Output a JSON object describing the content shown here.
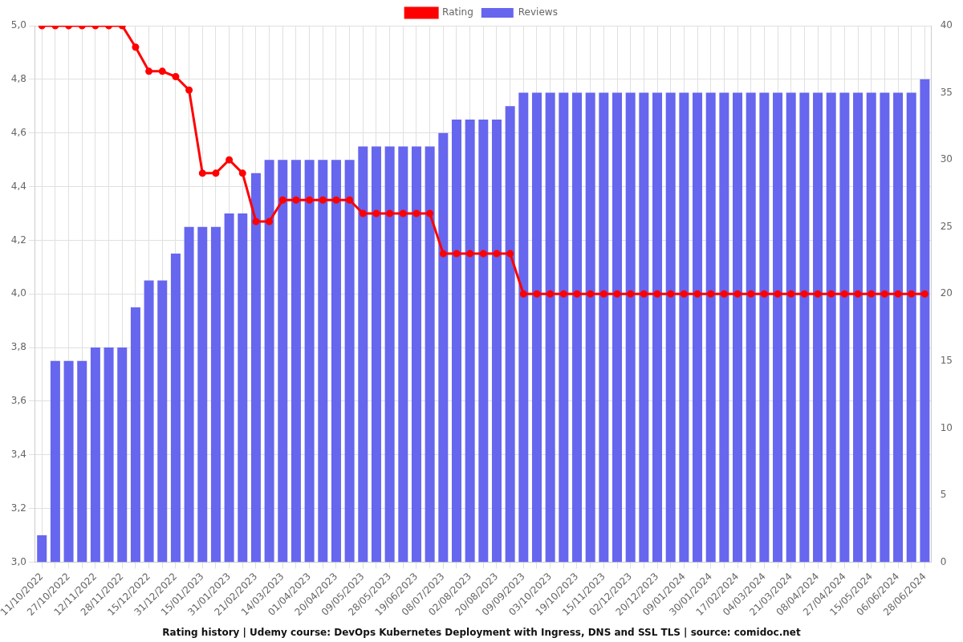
{
  "chart_data": {
    "type": "bar",
    "title": "Rating history | Udemy course: DevOps Kubernetes Deployment with Ingress, DNS and SSL TLS | source: comidoc.net",
    "categories": [
      "11/10/2022",
      null,
      "27/10/2022",
      null,
      "12/11/2022",
      null,
      "28/11/2022",
      null,
      "15/12/2022",
      null,
      "31/12/2022",
      null,
      "15/01/2023",
      null,
      "31/01/2023",
      null,
      "21/02/2023",
      null,
      "14/03/2023",
      null,
      "01/04/2023",
      null,
      "20/04/2023",
      null,
      "09/05/2023",
      null,
      "28/05/2023",
      null,
      "19/06/2023",
      null,
      "08/07/2023",
      null,
      "02/08/2023",
      null,
      "20/08/2023",
      null,
      "09/09/2023",
      null,
      "03/10/2023",
      null,
      "19/10/2023",
      null,
      "15/11/2023",
      null,
      "02/12/2023",
      null,
      "20/12/2023",
      null,
      "09/01/2024",
      null,
      "30/01/2024",
      null,
      "17/02/2024",
      null,
      "04/03/2024",
      null,
      "21/03/2024",
      null,
      "08/04/2024",
      null,
      "27/04/2024",
      null,
      "15/05/2024",
      null,
      "06/06/2024",
      null,
      "28/06/2024"
    ],
    "series": [
      {
        "name": "Rating",
        "type": "line",
        "color": "#ff0000",
        "marker": "circle",
        "values": [
          5,
          5,
          5,
          5,
          5,
          5,
          5,
          4.92,
          4.83,
          4.83,
          4.81,
          4.76,
          4.45,
          4.45,
          4.5,
          4.45,
          4.27,
          4.27,
          4.35,
          4.35,
          4.35,
          4.35,
          4.35,
          4.35,
          4.3,
          4.3,
          4.3,
          4.3,
          4.3,
          4.3,
          4.15,
          4.15,
          4.15,
          4.15,
          4.15,
          4.15,
          4,
          4,
          4,
          4,
          4,
          4,
          4,
          4,
          4,
          4,
          4,
          4,
          4,
          4,
          4,
          4,
          4,
          4,
          4,
          4,
          4,
          4,
          4,
          4,
          4,
          4,
          4,
          4,
          4,
          4,
          4
        ]
      },
      {
        "name": "Reviews",
        "type": "bar",
        "color": "#6666ee",
        "axis": "y2",
        "values": [
          2,
          15,
          15,
          15,
          16,
          16,
          16,
          19,
          21,
          21,
          23,
          25,
          25,
          25,
          26,
          26,
          29,
          30,
          30,
          30,
          30,
          30,
          30,
          30,
          31,
          31,
          31,
          31,
          31,
          31,
          32,
          33,
          33,
          33,
          33,
          34,
          35,
          35,
          35,
          35,
          35,
          35,
          35,
          35,
          35,
          35,
          35,
          35,
          35,
          35,
          35,
          35,
          35,
          35,
          35,
          35,
          35,
          35,
          35,
          35,
          35,
          35,
          35,
          35,
          35,
          35,
          36
        ]
      }
    ],
    "ylim": [
      3,
      5
    ],
    "yticks": [
      {
        "value": 3,
        "label": "3,0"
      },
      {
        "value": 3.2,
        "label": "3,2"
      },
      {
        "value": 3.4,
        "label": "3,4"
      },
      {
        "value": 3.6,
        "label": "3,6"
      },
      {
        "value": 3.8,
        "label": "3,8"
      },
      {
        "value": 4,
        "label": "4,0"
      },
      {
        "value": 4.2,
        "label": "4,2"
      },
      {
        "value": 4.4,
        "label": "4,4"
      },
      {
        "value": 4.6,
        "label": "4,6"
      },
      {
        "value": 4.8,
        "label": "4,8"
      },
      {
        "value": 5,
        "label": "5,0"
      }
    ],
    "y2lim": [
      0,
      40
    ],
    "y2ticks": [
      0,
      5,
      10,
      15,
      20,
      25,
      30,
      35,
      40
    ],
    "grid": true,
    "legend": "top"
  }
}
